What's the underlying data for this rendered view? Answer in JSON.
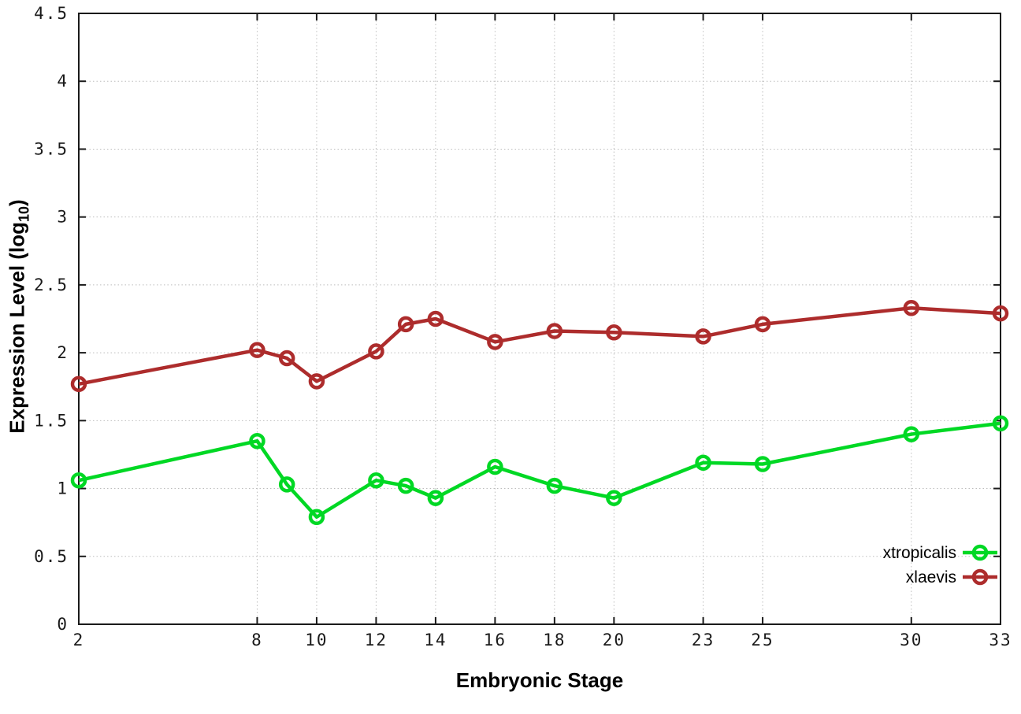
{
  "chart_data": {
    "type": "line",
    "title": "",
    "xlabel": "Embryonic Stage",
    "ylabel": "Expression Level (log10)",
    "ylabel_parts": {
      "prefix": "Expression Level (log",
      "sub": "10",
      "suffix": ")"
    },
    "x": [
      2,
      8,
      9,
      10,
      12,
      13,
      14,
      16,
      18,
      20,
      23,
      25,
      30,
      33
    ],
    "series": [
      {
        "name": "xtropicalis",
        "color": "#00d824",
        "values": [
          1.06,
          1.35,
          1.03,
          0.79,
          1.06,
          1.02,
          0.93,
          1.16,
          1.02,
          0.93,
          1.19,
          1.18,
          1.4,
          1.48
        ]
      },
      {
        "name": "xlaevis",
        "color": "#ad2c2c",
        "values": [
          1.77,
          2.02,
          1.96,
          1.79,
          2.01,
          2.21,
          2.25,
          2.08,
          2.16,
          2.15,
          2.12,
          2.21,
          2.33,
          2.29
        ]
      }
    ],
    "xlim": [
      2,
      33
    ],
    "ylim": [
      0,
      4.5
    ],
    "x_ticks": [
      2,
      8,
      10,
      12,
      14,
      16,
      18,
      20,
      23,
      25,
      30,
      33
    ],
    "y_ticks": [
      0,
      0.5,
      1,
      1.5,
      2,
      2.5,
      3,
      3.5,
      4,
      4.5
    ],
    "grid": true,
    "marker": "open-circle",
    "legend_position": "inside bottom right"
  },
  "colors": {
    "axis": "#1a1a1a",
    "grid": "#bdbdbd",
    "background": "#ffffff"
  }
}
